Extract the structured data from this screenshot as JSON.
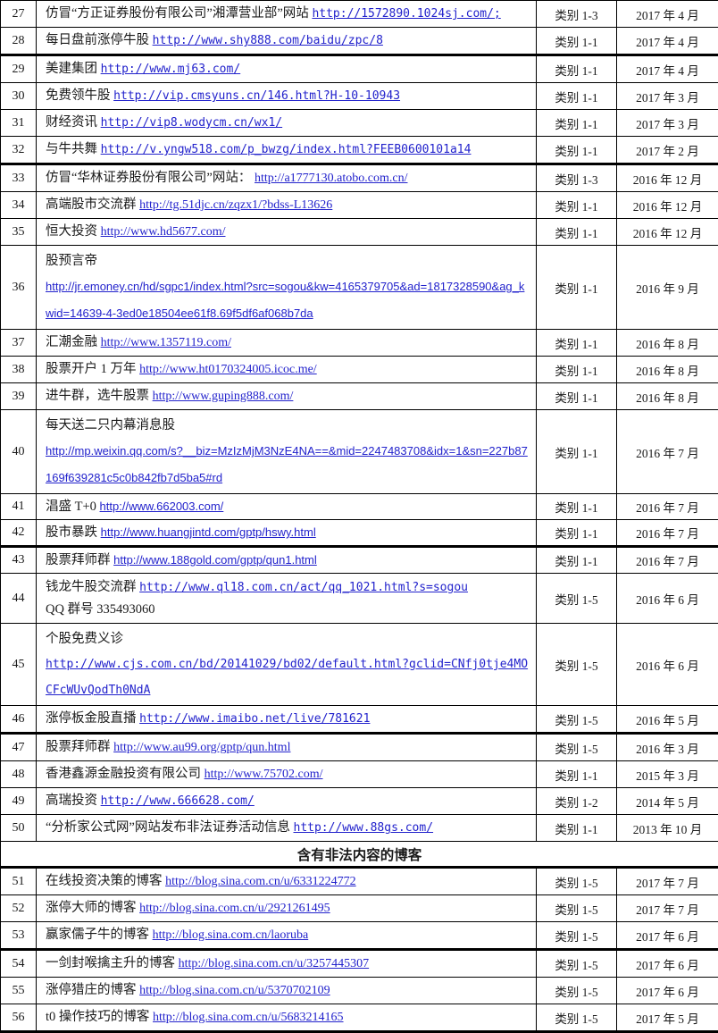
{
  "colors": {
    "link": "#2222CC",
    "text": "#1a1a1a",
    "border": "#000000",
    "background": "#ffffff"
  },
  "table": {
    "rows": [
      {
        "number": "27",
        "title": "仿冒“方正证券股份有限公司”湘潭营业部”网站",
        "url": "http://1572890.1024sj.com/;",
        "category": "类别 1-3",
        "date": "2017 年 4 月",
        "url_font": "mono"
      },
      {
        "number": "28",
        "title": "每日盘前涨停牛股",
        "url": "http://www.shy888.com/baidu/zpc/8",
        "category": "类别 1-1",
        "date": "2017 年 4 月",
        "url_font": "mono",
        "thick_border_after": true
      },
      {
        "number": "29",
        "title": "美建集团",
        "url": "http://www.mj63.com/",
        "category": "类别 1-1",
        "date": "2017 年 4 月",
        "url_font": "mono"
      },
      {
        "number": "30",
        "title": "免费领牛股",
        "url": "http://vip.cmsyuns.cn/146.html?H-10-10943",
        "category": "类别 1-1",
        "date": "2017 年 3 月",
        "url_font": "mono"
      },
      {
        "number": "31",
        "title": "财经资讯",
        "url": "http://vip8.wodycm.cn/wx1/",
        "category": "类别 1-1",
        "date": "2017 年 3 月",
        "url_font": "mono"
      },
      {
        "number": "32",
        "title": "与牛共舞",
        "url": "http://v.yngw518.com/p_bwzg/index.html?FEEB0600101a14",
        "category": "类别 1-1",
        "date": "2017 年 2 月",
        "url_font": "mono",
        "thick_border_after": true
      },
      {
        "number": "33",
        "title": "仿冒“华林证券股份有限公司”网站：",
        "url": "http://a1777130.atobo.com.cn/",
        "category": "类别 1-3",
        "date": "2016 年 12 月",
        "url_font": "serif"
      },
      {
        "number": "34",
        "title": "高端股市交流群",
        "url": "http://tg.51djc.cn/zqzx1/?bdss-L13626",
        "category": "类别 1-1",
        "date": "2016 年 12 月",
        "url_font": "serif"
      },
      {
        "number": "35",
        "title": "恒大投资",
        "url": "http://www.hd5677.com/",
        "category": "类别 1-1",
        "date": "2016 年 12 月",
        "url_font": "serif"
      },
      {
        "number": "36",
        "title": "股预言帝",
        "url": "http://jr.emoney.cn/hd/sgpc1/index.html?src=sogou&kw=4165379705&ad=1817328590&ag_kwid=14639-4-3ed0e18504ee61f8.69f5df6af068b7da",
        "category": "类别 1-1",
        "date": "2016 年 9 月",
        "url_font": "sans",
        "multiline": true
      },
      {
        "number": "37",
        "title": "汇潮金融",
        "url": "http://www.1357119.com/",
        "category": "类别 1-1",
        "date": "2016 年 8 月",
        "url_font": "serif"
      },
      {
        "number": "38",
        "title": "股票开户 1 万年",
        "url": "http://www.ht0170324005.icoc.me/",
        "category": "类别 1-1",
        "date": "2016 年 8 月",
        "url_font": "serif"
      },
      {
        "number": "39",
        "title": "进牛群，选牛股票",
        "url": "http://www.guping888.com/",
        "category": "类别 1-1",
        "date": "2016 年 8 月",
        "url_font": "serif"
      },
      {
        "number": "40",
        "title": "每天送二只内幕消息股",
        "url": "http://mp.weixin.qq.com/s?__biz=MzIzMjM3NzE4NA==&mid=2247483708&idx=1&sn=227b87169f639281c5c0b842fb7d5ba5#rd",
        "category": "类别 1-1",
        "date": "2016 年 7 月",
        "url_font": "sans",
        "multiline": true
      },
      {
        "number": "41",
        "title": "淐盛 T+0",
        "url": " http://www.662003.com/",
        "category": "类别 1-1",
        "date": "2016 年 7 月",
        "url_font": "sans"
      },
      {
        "number": "42",
        "title": "股市暴跌",
        "url": "http://www.huangjintd.com/gptp/hswy.html",
        "category": "类别 1-1",
        "date": "2016 年 7 月",
        "url_font": "sans",
        "thick_border_after": true
      },
      {
        "number": "43",
        "title": "股票拜师群",
        "url": "http://www.188gold.com/gptp/qun1.html",
        "category": "类别 1-1",
        "date": "2016 年 7 月",
        "url_font": "sans"
      },
      {
        "number": "44",
        "title": "钱龙牛股交流群",
        "url": "http://www.ql18.com.cn/act/qq_1021.html?s=sogou",
        "extra_line": "QQ 群号 335493060",
        "category": "类别 1-5",
        "date": "2016 年 6 月",
        "url_font": "mono"
      },
      {
        "number": "45",
        "title": "个股免费义诊",
        "url": "http://www.cjs.com.cn/bd/20141029/bd02/default.html?gclid=CNfj0tje4MOCFcWUvQodTh0NdA",
        "category": "类别 1-5",
        "date": "2016 年 6 月",
        "url_font": "mono",
        "multiline": true
      },
      {
        "number": "46",
        "title": "涨停板金股直播",
        "url": "http://www.imaibo.net/live/781621",
        "category": "类别 1-5",
        "date": "2016 年 5 月",
        "url_font": "mono",
        "thick_border_after": true
      },
      {
        "number": "47",
        "title": "股票拜师群",
        "url": "http://www.au99.org/gptp/qun.html",
        "category": "类别 1-5",
        "date": "2016 年 3 月",
        "url_font": "serif"
      },
      {
        "number": "48",
        "title": "香港鑫源金融投资有限公司",
        "url": "http://www.75702.com/",
        "category": "类别 1-1",
        "date": "2015 年 3 月",
        "url_font": "serif"
      },
      {
        "number": "49",
        "title": "高瑞投资",
        "url": "http://www.666628.com/",
        "category": "类别 1-2",
        "date": "2014 年 5 月",
        "url_font": "mono"
      },
      {
        "number": "50",
        "title": "“分析家公式网”网站发布非法证券活动信息",
        "url": "http://www.88gs.com/",
        "category": "类别 1-1",
        "date": "2013 年 10 月",
        "url_font": "mono"
      },
      {
        "section_label": "含有非法内容的博客",
        "thick_border_after": true
      },
      {
        "number": "51",
        "title": "在线投资决策的博客",
        "url": "http://blog.sina.com.cn/u/6331224772",
        "category": "类别 1-5",
        "date": "2017 年 7 月",
        "url_font": "serif"
      },
      {
        "number": "52",
        "title": "涨停大师的博客",
        "url": "http://blog.sina.com.cn/u/2921261495",
        "category": "类别 1-5",
        "date": "2017 年 7 月",
        "url_font": "serif"
      },
      {
        "number": "53",
        "title": "赢家儒子牛的博客",
        "url": "http://blog.sina.com.cn/laoruba",
        "category": "类别 1-5",
        "date": "2017 年 6 月",
        "url_font": "serif",
        "thick_border_after": true
      },
      {
        "number": "54",
        "title": "一剑封喉擒主升的博客",
        "url": "http://blog.sina.com.cn/u/3257445307",
        "category": "类别 1-5",
        "date": "2017 年 6 月",
        "url_font": "serif"
      },
      {
        "number": "55",
        "title": "涨停猎庄的博客",
        "url": "http://blog.sina.com.cn/u/5370702109",
        "category": "类别 1-5",
        "date": "2017 年 6 月",
        "url_font": "serif"
      },
      {
        "number": "56",
        "title": "t0 操作技巧的博客",
        "url": "http://blog.sina.com.cn/u/5683214165",
        "category": "类别 1-5",
        "date": "2017 年 5 月",
        "url_font": "serif",
        "thick_border_after": true
      }
    ]
  }
}
